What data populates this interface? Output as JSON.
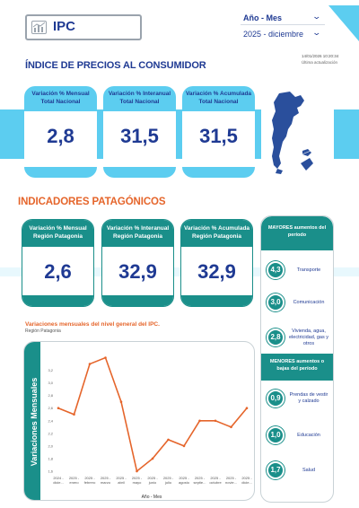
{
  "header": {
    "logo_text": "IPC",
    "period_label": "Año - Mes",
    "period_value": "2025 - diciembre",
    "update_date": "14/01/2026 10:20:34",
    "update_label": "Última actualización"
  },
  "national": {
    "title": "ÍNDICE DE PRECIOS AL CONSUMIDOR",
    "cards": [
      {
        "line1": "Variación % Mensual",
        "line2": "Total Nacional",
        "value": "2,8"
      },
      {
        "line1": "Variación % Interanual",
        "line2": "Total Nacional",
        "value": "31,5"
      },
      {
        "line1": "Variación % Acumulada",
        "line2": "Total Nacional",
        "value": "31,5"
      }
    ],
    "map_icon": "argentina-map-icon"
  },
  "patagonia": {
    "title": "INDICADORES PATAGÓNICOS",
    "cards": [
      {
        "line1": "Variación % Mensual",
        "line2": "Región Patagonia",
        "value": "2,6"
      },
      {
        "line1": "Variación % Interanual",
        "line2": "Región Patagonia",
        "value": "32,9"
      },
      {
        "line1": "Variación % Acumulada",
        "line2": "Región Patagonia",
        "value": "32,9"
      }
    ]
  },
  "side": {
    "top_title_1": "MAYORES aumentos del",
    "top_title_2": "período",
    "top_items": [
      {
        "value": "4,3",
        "label": "Transporte"
      },
      {
        "value": "3,0",
        "label": "Comunicación"
      },
      {
        "value": "2,8",
        "label": "Vivienda, agua, electricidad, gas y otros"
      }
    ],
    "bottom_title_1": "MENORES aumentos o",
    "bottom_title_2": "bajas del período",
    "bottom_items": [
      {
        "value": "0,9",
        "label": "Prendas de vestir y calzado"
      },
      {
        "value": "1,0",
        "label": "Educación"
      },
      {
        "value": "1,7",
        "label": "Salud"
      }
    ]
  },
  "colors": {
    "navy": "#1f3a93",
    "sky": "#5ccdf0",
    "teal": "#1a8f8a",
    "orange": "#e5652b"
  },
  "chart_data": {
    "type": "line",
    "title": "Variaciones mensuales del nivel general del IPC.",
    "subtitle": "Región Patagonia",
    "xlabel": "Año - Mes",
    "ylabel": "Variaciones Mensuales",
    "categories": [
      "2024 - dicie...",
      "2025 - enero",
      "2025 - febrero",
      "2025 - marzo",
      "2025 - abril",
      "2025 - mayo",
      "2025 - junio",
      "2025 - julio",
      "2025 - agosto",
      "2025 - septie...",
      "2025 - octubre",
      "2025 - novie...",
      "2025 - dicie..."
    ],
    "series": [
      {
        "values": [
          2.6,
          2.5,
          3.3,
          3.4,
          2.7,
          1.6,
          1.8,
          2.1,
          2.0,
          2.4,
          2.4,
          2.3,
          2.6
        ]
      }
    ],
    "yticks": [
      "1,6",
      "1,8",
      "2,0",
      "2,2",
      "2,4",
      "2,6",
      "2,8",
      "3,0",
      "3,2"
    ],
    "ylim": [
      1.6,
      3.45
    ],
    "grid": false,
    "line_color": "#e5652b"
  }
}
